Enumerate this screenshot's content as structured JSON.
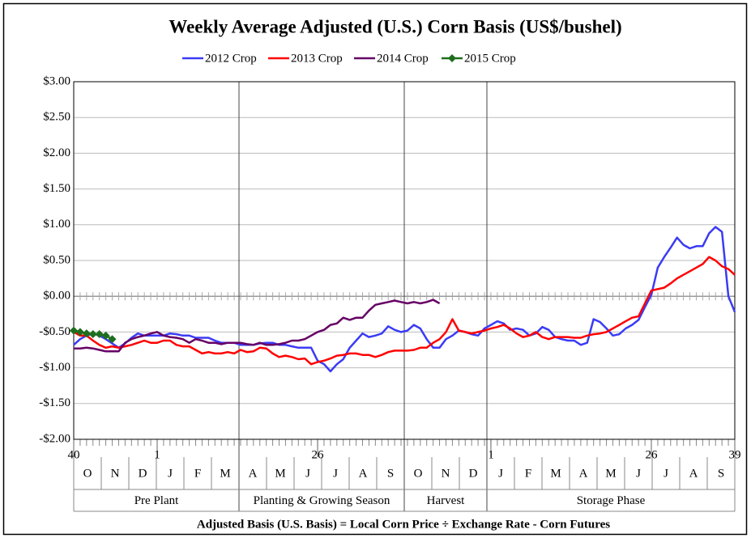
{
  "chart_data": {
    "type": "line",
    "title": "Weekly Average Adjusted (U.S.) Corn Basis (US$/bushel)",
    "footer": "Adjusted Basis (U.S. Basis) = Local Corn Price ÷ Exchange Rate - Corn Futures",
    "legend": "top",
    "grid": true,
    "xlim": [
      0,
      103
    ],
    "xticks": [
      {
        "value": 0,
        "label": "40"
      },
      {
        "value": 13,
        "label": "1"
      },
      {
        "value": 38,
        "label": "26"
      },
      {
        "value": 65,
        "label": "1"
      },
      {
        "value": 90,
        "label": "26"
      },
      {
        "value": 103,
        "label": "39"
      }
    ],
    "ylim": [
      -2,
      3
    ],
    "yticks": [
      {
        "value": 3,
        "label": "$3.00"
      },
      {
        "value": 2.5,
        "label": "$2.50"
      },
      {
        "value": 2,
        "label": "$2.00"
      },
      {
        "value": 1.5,
        "label": "$1.50"
      },
      {
        "value": 1,
        "label": "$1.00"
      },
      {
        "value": 0.5,
        "label": "$0.50"
      },
      {
        "value": 0,
        "label": "$0.00"
      },
      {
        "value": -0.5,
        "label": "-$0.50"
      },
      {
        "value": -1,
        "label": "-$1.00"
      },
      {
        "value": -1.5,
        "label": "-$1.50"
      },
      {
        "value": -2,
        "label": "-$2.00"
      }
    ],
    "phases": [
      {
        "name": "Pre Plant",
        "months": [
          "O",
          "N",
          "D",
          "J",
          "F",
          "M"
        ]
      },
      {
        "name": "Planting & Growing Season",
        "months": [
          "A",
          "M",
          "J",
          "J",
          "A",
          "S"
        ]
      },
      {
        "name": "Harvest",
        "months": [
          "O",
          "N",
          "D"
        ]
      },
      {
        "name": "Storage Phase",
        "months": [
          "J",
          "F",
          "M",
          "A",
          "M",
          "J",
          "J",
          "A",
          "S"
        ]
      }
    ],
    "x": [
      0,
      1,
      2,
      3,
      4,
      5,
      6,
      7,
      8,
      9,
      10,
      11,
      12,
      13,
      14,
      15,
      16,
      17,
      18,
      19,
      20,
      21,
      22,
      23,
      24,
      25,
      26,
      27,
      28,
      29,
      30,
      31,
      32,
      33,
      34,
      35,
      36,
      37,
      38,
      39,
      40,
      41,
      42,
      43,
      44,
      45,
      46,
      47,
      48,
      49,
      50,
      51,
      52,
      53,
      54,
      55,
      56,
      57,
      58,
      59,
      60,
      61,
      62,
      63,
      64,
      65,
      66,
      67,
      68,
      69,
      70,
      71,
      72,
      73,
      74,
      75,
      76,
      77,
      78,
      79,
      80,
      81,
      82,
      83,
      84,
      85,
      86,
      87,
      88,
      89,
      90,
      91,
      92,
      93,
      94,
      95,
      96,
      97,
      98,
      99,
      100,
      101,
      102,
      103
    ],
    "series": [
      {
        "name": "2012 Crop",
        "color": "#3b3bf5",
        "values": [
          -0.68,
          -0.6,
          -0.55,
          -0.52,
          -0.55,
          -0.6,
          -0.66,
          -0.72,
          -0.66,
          -0.58,
          -0.52,
          -0.55,
          -0.55,
          -0.55,
          -0.55,
          -0.52,
          -0.53,
          -0.55,
          -0.55,
          -0.58,
          -0.58,
          -0.58,
          -0.62,
          -0.65,
          -0.65,
          -0.65,
          -0.68,
          -0.68,
          -0.68,
          -0.66,
          -0.65,
          -0.65,
          -0.68,
          -0.68,
          -0.7,
          -0.72,
          -0.72,
          -0.72,
          -0.9,
          -0.95,
          -1.05,
          -0.95,
          -0.88,
          -0.72,
          -0.62,
          -0.52,
          -0.57,
          -0.55,
          -0.52,
          -0.42,
          -0.47,
          -0.5,
          -0.48,
          -0.4,
          -0.45,
          -0.6,
          -0.72,
          -0.72,
          -0.6,
          -0.55,
          -0.48,
          -0.5,
          -0.53,
          -0.55,
          -0.45,
          -0.4,
          -0.35,
          -0.38,
          -0.47,
          -0.45,
          -0.47,
          -0.55,
          -0.52,
          -0.43,
          -0.47,
          -0.57,
          -0.6,
          -0.62,
          -0.62,
          -0.68,
          -0.65,
          -0.32,
          -0.36,
          -0.45,
          -0.55,
          -0.53,
          -0.45,
          -0.4,
          -0.33,
          -0.15,
          0.02,
          0.4,
          0.55,
          0.68,
          0.82,
          0.72,
          0.67,
          0.7,
          0.7,
          0.88,
          0.97,
          0.9,
          0,
          -0.22
        ]
      },
      {
        "name": "2013 Crop",
        "color": "#ff0000",
        "values": [
          -0.5,
          -0.55,
          -0.55,
          -0.62,
          -0.68,
          -0.72,
          -0.7,
          -0.72,
          -0.7,
          -0.68,
          -0.65,
          -0.62,
          -0.65,
          -0.65,
          -0.62,
          -0.62,
          -0.68,
          -0.7,
          -0.7,
          -0.75,
          -0.8,
          -0.78,
          -0.8,
          -0.8,
          -0.78,
          -0.8,
          -0.75,
          -0.78,
          -0.77,
          -0.72,
          -0.73,
          -0.8,
          -0.85,
          -0.83,
          -0.85,
          -0.88,
          -0.87,
          -0.95,
          -0.92,
          -0.9,
          -0.87,
          -0.83,
          -0.82,
          -0.8,
          -0.8,
          -0.82,
          -0.82,
          -0.85,
          -0.82,
          -0.78,
          -0.76,
          -0.76,
          -0.76,
          -0.75,
          -0.72,
          -0.72,
          -0.65,
          -0.6,
          -0.5,
          -0.32,
          -0.48,
          -0.5,
          -0.52,
          -0.5,
          -0.48,
          -0.45,
          -0.43,
          -0.4,
          -0.45,
          -0.52,
          -0.57,
          -0.55,
          -0.5,
          -0.57,
          -0.6,
          -0.57,
          -0.57,
          -0.57,
          -0.58,
          -0.58,
          -0.55,
          -0.53,
          -0.52,
          -0.5,
          -0.45,
          -0.4,
          -0.35,
          -0.3,
          -0.28,
          -0.1,
          0.08,
          0.1,
          0.12,
          0.18,
          0.25,
          0.3,
          0.35,
          0.4,
          0.45,
          0.55,
          0.5,
          0.42,
          0.38,
          0.3
        ]
      },
      {
        "name": "2014 Crop",
        "color": "#660066",
        "values": [
          -0.73,
          -0.73,
          -0.72,
          -0.73,
          -0.75,
          -0.77,
          -0.77,
          -0.77,
          -0.65,
          -0.6,
          -0.57,
          -0.55,
          -0.52,
          -0.5,
          -0.55,
          -0.57,
          -0.58,
          -0.6,
          -0.65,
          -0.6,
          -0.62,
          -0.65,
          -0.65,
          -0.67,
          -0.65,
          -0.65,
          -0.65,
          -0.67,
          -0.68,
          -0.65,
          -0.68,
          -0.68,
          -0.67,
          -0.65,
          -0.62,
          -0.62,
          -0.6,
          -0.55,
          -0.5,
          -0.47,
          -0.4,
          -0.38,
          -0.3,
          -0.33,
          -0.3,
          -0.3,
          -0.2,
          -0.12,
          -0.1,
          -0.08,
          -0.06,
          -0.08,
          -0.1,
          -0.08,
          -0.1,
          -0.08,
          -0.05,
          -0.1,
          null,
          null,
          null,
          null,
          null,
          null,
          null,
          null,
          null,
          null,
          null,
          null,
          null,
          null,
          null,
          null,
          null,
          null,
          null,
          null,
          null,
          null,
          null,
          null,
          null,
          null,
          null,
          null,
          null,
          null,
          null,
          null,
          null,
          null,
          null,
          null,
          null,
          null,
          null,
          null,
          null,
          null,
          null,
          null,
          null,
          null
        ]
      },
      {
        "name": "2015 Crop",
        "color": "#1e6e1e",
        "marker": "diamond",
        "values": [
          -0.48,
          -0.5,
          -0.52,
          -0.53,
          -0.53,
          -0.55,
          -0.6,
          null,
          null,
          null,
          null,
          null,
          null,
          null,
          null,
          null,
          null,
          null,
          null,
          null,
          null,
          null,
          null,
          null,
          null,
          null,
          null,
          null,
          null,
          null,
          null,
          null,
          null,
          null,
          null,
          null,
          null,
          null,
          null,
          null,
          null,
          null,
          null,
          null,
          null,
          null,
          null,
          null,
          null,
          null,
          null,
          null,
          null,
          null,
          null,
          null,
          null,
          null,
          null,
          null,
          null,
          null,
          null,
          null,
          null,
          null,
          null,
          null,
          null,
          null,
          null,
          null,
          null,
          null,
          null,
          null,
          null,
          null,
          null,
          null,
          null,
          null,
          null,
          null,
          null,
          null,
          null,
          null,
          null,
          null,
          null,
          null,
          null,
          null,
          null,
          null,
          null,
          null,
          null,
          null,
          null,
          null,
          null,
          null
        ]
      }
    ]
  }
}
